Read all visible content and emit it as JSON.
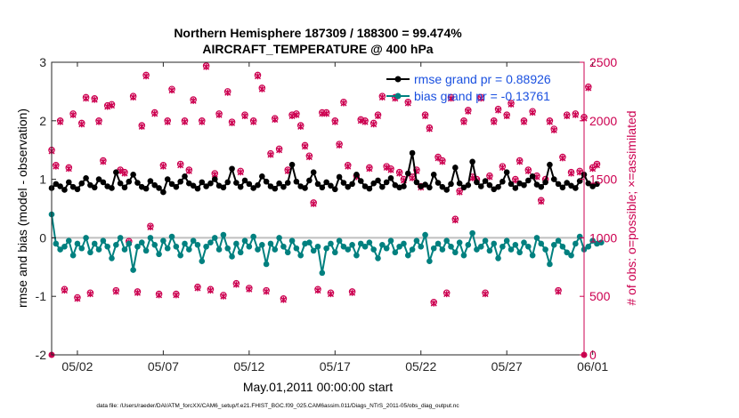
{
  "chart_data": {
    "type": "line",
    "title_line1": "Northern Hemisphere 187309 / 188300 = 99.474%",
    "title_line2": "AIRCRAFT_TEMPERATURE @ 400 hPa",
    "xlabel": "May.01,2011 00:00:00 start",
    "ylabel_left": "rmse and bias (model - observation)",
    "ylabel_right": "# of obs: o=possible; ×=assimilated",
    "footer": "data file: /Users/raeder/DAI/ATM_forcXX/CAM6_setup/f.e21.FHIST_BGC.f09_025.CAM6assim.011/Diags_NTrS_2011-05/obs_diag_output.nc",
    "x_range_days": [
      0.5,
      31.5
    ],
    "ylim_left": [
      -2,
      3
    ],
    "ylim_right": [
      0,
      2500
    ],
    "x_ticks": [
      {
        "day": 2,
        "label": "05/02"
      },
      {
        "day": 7,
        "label": "05/07"
      },
      {
        "day": 12,
        "label": "05/12"
      },
      {
        "day": 17,
        "label": "05/17"
      },
      {
        "day": 22,
        "label": "05/22"
      },
      {
        "day": 27,
        "label": "05/27"
      },
      {
        "day": 32,
        "label": "06/01"
      }
    ],
    "y_ticks_left": [
      -2,
      -1,
      0,
      1,
      2,
      3
    ],
    "y_ticks_right": [
      0,
      500,
      1000,
      1500,
      2000,
      2500
    ],
    "legend": {
      "position": "top-right",
      "rmse_label": "rmse grand pr = 0.88926",
      "bias_label": "bias grand pr = -0.13761"
    },
    "colors": {
      "rmse": "#000000",
      "bias": "#00807f",
      "obs": "#cc0050",
      "legend_text": "#1a50e0",
      "zero_line": "#bfbfbf"
    },
    "series": [
      {
        "name": "rmse",
        "start_day": 0.5,
        "step_days": 0.25,
        "values": [
          0.85,
          0.92,
          0.88,
          0.82,
          0.95,
          0.87,
          0.83,
          0.93,
          1.02,
          0.9,
          0.86,
          1.0,
          0.95,
          0.88,
          0.85,
          1.12,
          0.93,
          0.86,
          0.96,
          1.08,
          0.94,
          0.87,
          0.84,
          0.97,
          0.9,
          0.85,
          0.78,
          1.0,
          0.92,
          0.87,
          0.96,
          1.05,
          0.93,
          0.89,
          0.84,
          0.95,
          0.88,
          0.93,
          1.0,
          0.89,
          0.86,
          0.95,
          1.18,
          0.94,
          0.87,
          0.98,
          0.92,
          0.85,
          0.9,
          1.05,
          0.96,
          0.88,
          0.84,
          0.93,
          0.87,
          0.94,
          1.25,
          0.96,
          0.88,
          0.85,
          0.98,
          1.12,
          0.92,
          0.86,
          0.95,
          0.89,
          0.83,
          1.04,
          0.94,
          0.87,
          0.92,
          1.08,
          0.97,
          0.88,
          0.84,
          0.93,
          0.98,
          0.87,
          0.95,
          1.02,
          0.9,
          0.86,
          0.88,
          1.1,
          1.45,
          0.95,
          0.88,
          0.91,
          0.86,
          1.08,
          0.94,
          0.87,
          0.82,
          0.92,
          1.2,
          0.93,
          0.86,
          0.9,
          1.3,
          0.95,
          0.88,
          0.97,
          0.9,
          0.83,
          0.87,
          0.96,
          1.12,
          0.92,
          0.85,
          0.93,
          0.9,
          0.98,
          1.05,
          0.91,
          0.87,
          0.95,
          1.25,
          1.0,
          0.92,
          0.86,
          0.94,
          0.89,
          0.85,
          0.97,
          1.08,
          0.93,
          0.88,
          0.92
        ],
        "marker": "filled-circle"
      },
      {
        "name": "bias",
        "start_day": 0.5,
        "step_days": 0.25,
        "values": [
          0.4,
          -0.1,
          -0.2,
          -0.15,
          -0.05,
          -0.3,
          -0.1,
          -0.18,
          0.0,
          -0.25,
          -0.1,
          -0.2,
          -0.05,
          -0.15,
          -0.35,
          -0.12,
          0.0,
          -0.2,
          -0.1,
          -0.55,
          -0.15,
          -0.08,
          -0.22,
          0.0,
          -0.12,
          -0.28,
          -0.05,
          -0.18,
          0.02,
          -0.15,
          -0.3,
          -0.1,
          -0.2,
          -0.05,
          -0.12,
          -0.4,
          -0.15,
          -0.08,
          0.0,
          -0.2,
          0.05,
          -0.18,
          -0.32,
          -0.1,
          -0.25,
          -0.05,
          -0.15,
          0.02,
          -0.2,
          -0.12,
          -0.45,
          -0.1,
          -0.2,
          0.0,
          -0.15,
          -0.25,
          -0.05,
          -0.18,
          -0.3,
          -0.1,
          -0.08,
          -0.22,
          -0.15,
          -0.6,
          -0.18,
          -0.1,
          -0.25,
          -0.05,
          -0.15,
          -0.2,
          -0.12,
          -0.3,
          -0.1,
          -0.15,
          -0.08,
          -0.2,
          -0.35,
          -0.12,
          -0.18,
          -0.05,
          -0.25,
          -0.15,
          -0.1,
          -0.3,
          -0.2,
          -0.05,
          -0.15,
          0.05,
          -0.4,
          -0.18,
          -0.1,
          -0.2,
          -0.05,
          -0.15,
          -0.25,
          -0.08,
          -0.3,
          -0.12,
          0.08,
          -0.2,
          -0.15,
          -0.05,
          -0.22,
          -0.1,
          -0.35,
          -0.15,
          -0.05,
          -0.2,
          -0.12,
          -0.25,
          -0.08,
          -0.15,
          -0.3,
          0.0,
          -0.1,
          -0.2,
          -0.45,
          -0.12,
          -0.05,
          -0.15,
          -0.25,
          -0.3,
          -0.1,
          0.02,
          -0.2,
          -0.15,
          -0.05,
          -0.1,
          -0.08
        ],
        "marker": "filled-circle"
      },
      {
        "name": "possible",
        "axis": "right",
        "start_day": 0.5,
        "step_days": 0.25,
        "values": [
          1750,
          1620,
          2000,
          560,
          1600,
          2060,
          490,
          1980,
          2200,
          530,
          2190,
          2000,
          1660,
          2130,
          2140,
          550,
          1580,
          1560,
          970,
          2210,
          540,
          1960,
          2390,
          1100,
          2070,
          520,
          1620,
          2000,
          2270,
          520,
          1630,
          2000,
          1580,
          2180,
          580,
          2000,
          2470,
          560,
          1550,
          2060,
          510,
          2250,
          1990,
          610,
          1570,
          2050,
          570,
          2000,
          2390,
          2280,
          550,
          1720,
          2020,
          1760,
          480,
          1580,
          2050,
          2060,
          1960,
          1790,
          1700,
          1300,
          560,
          2070,
          2070,
          530,
          2000,
          1800,
          2160,
          1620,
          540,
          1530,
          2010,
          2000,
          1600,
          1980,
          2050,
          2210,
          1610,
          1590,
          2200,
          1560,
          1500,
          2160,
          1520,
          1580,
          1440,
          2050,
          1940,
          450,
          1690,
          1660,
          530,
          2200,
          1160,
          1400,
          2000,
          2090,
          1520,
          1500,
          2200,
          530,
          1530,
          2000,
          2100,
          1610,
          2050,
          2150,
          1500,
          1660,
          2000,
          1580,
          2080,
          1530,
          1320,
          1500,
          2000,
          1930,
          550,
          1690,
          2050,
          1560,
          2060,
          1570,
          2030,
          2290,
          1600,
          1630
        ],
        "marker": "open-circle"
      },
      {
        "name": "assimilated",
        "axis": "right",
        "start_day": 0.5,
        "step_days": 0.25,
        "values": [
          1740,
          1610,
          1990,
          550,
          1590,
          2050,
          480,
          1970,
          2190,
          520,
          2180,
          1990,
          1650,
          2120,
          2130,
          540,
          1570,
          1550,
          960,
          2200,
          530,
          1950,
          2380,
          1090,
          2060,
          510,
          1610,
          1990,
          2260,
          510,
          1620,
          1990,
          1570,
          2170,
          570,
          1990,
          2460,
          550,
          1540,
          2050,
          500,
          2240,
          1980,
          600,
          1560,
          2040,
          560,
          1990,
          2380,
          2270,
          540,
          1710,
          2010,
          1750,
          470,
          1570,
          2040,
          2050,
          1950,
          1780,
          1690,
          1290,
          550,
          2060,
          2060,
          520,
          1990,
          1790,
          2150,
          1610,
          530,
          1520,
          2000,
          1990,
          1590,
          1970,
          2040,
          2200,
          1600,
          1580,
          2190,
          1550,
          1490,
          2150,
          1510,
          1570,
          1430,
          2040,
          1930,
          440,
          1680,
          1650,
          520,
          2190,
          1150,
          1390,
          1990,
          2080,
          1510,
          1490,
          2190,
          520,
          1520,
          1990,
          2090,
          1600,
          2040,
          2140,
          1490,
          1650,
          1990,
          1570,
          2070,
          1520,
          1310,
          1490,
          1990,
          1920,
          540,
          1680,
          2040,
          1550,
          2050,
          1560,
          2020,
          2280,
          1590,
          1620
        ],
        "marker": "x"
      }
    ]
  }
}
